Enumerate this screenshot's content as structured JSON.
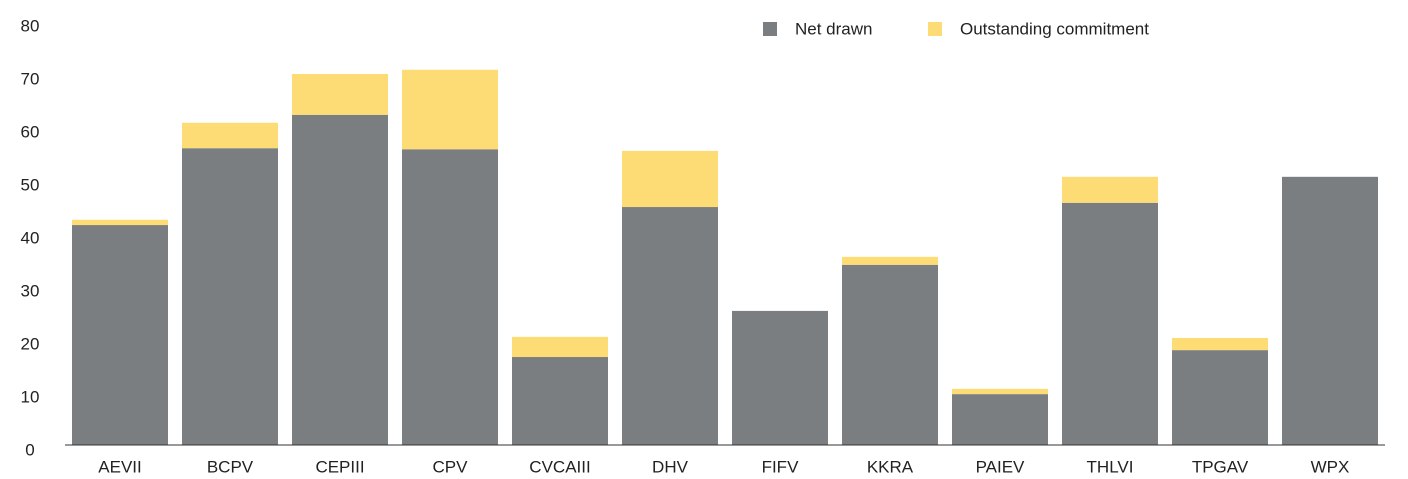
{
  "chart_data": {
    "type": "stacked_bar",
    "categories": [
      "AEVII",
      "BCPV",
      "CEPIII",
      "CPV",
      "CVCAIII",
      "DHV",
      "FIFV",
      "KKRA",
      "PAIEV",
      "THLVI",
      "TPGAV",
      "WPX"
    ],
    "series": [
      {
        "name": "Net drawn",
        "color": "#7b7e81",
        "values": [
          41.5,
          56,
          62.3,
          55.8,
          16.6,
          44.9,
          25.3,
          34,
          9.6,
          45.7,
          17.9,
          50.6
        ]
      },
      {
        "name": "Outstanding commitment",
        "color": "#fddc76",
        "values": [
          1.0,
          4.8,
          7.7,
          15,
          3.8,
          10.6,
          0,
          1.5,
          1.0,
          4.9,
          2.3,
          0
        ]
      }
    ],
    "ylim": [
      0,
      80
    ],
    "yticks": [
      0,
      10,
      20,
      30,
      40,
      50,
      60,
      70,
      80
    ],
    "legend": "top-right"
  }
}
